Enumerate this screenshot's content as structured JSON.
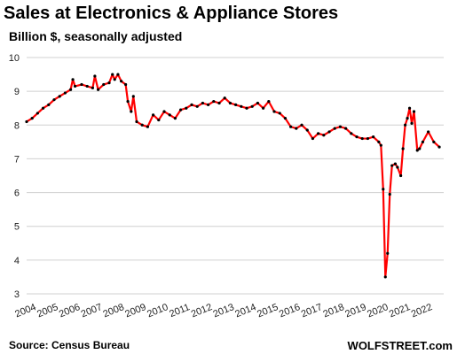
{
  "chart_data": {
    "type": "line",
    "title": "Sales at Electronics & Appliance Stores",
    "subtitle": "Billion $, seasonally adjusted",
    "xlabel": "",
    "ylabel": "",
    "ylim": [
      3,
      10
    ],
    "y_ticks": [
      "3",
      "4",
      "5",
      "6",
      "7",
      "8",
      "9",
      "10"
    ],
    "x_ticks": [
      "2004",
      "2005",
      "2006",
      "2007",
      "2008",
      "2009",
      "2010",
      "2011",
      "2012",
      "2013",
      "2014",
      "2015",
      "2016",
      "2017",
      "2018",
      "2019",
      "2020",
      "2021",
      "2022"
    ],
    "grid": "horizontal",
    "line_color": "#ff0000",
    "marker_color": "#000000",
    "series": [
      {
        "x": [
          2004.0,
          2004.25,
          2004.5,
          2004.75,
          2005.0,
          2005.25,
          2005.5,
          2005.75,
          2006.0,
          2006.1,
          2006.2,
          2006.5,
          2006.75,
          2007.0,
          2007.1,
          2007.25,
          2007.5,
          2007.75,
          2007.9,
          2008.0,
          2008.15,
          2008.3,
          2008.5,
          2008.6,
          2008.75,
          2008.85,
          2009.0,
          2009.25,
          2009.5,
          2009.75,
          2010.0,
          2010.25,
          2010.5,
          2010.75,
          2011.0,
          2011.25,
          2011.5,
          2011.75,
          2012.0,
          2012.25,
          2012.5,
          2012.75,
          2013.0,
          2013.25,
          2013.5,
          2013.75,
          2014.0,
          2014.25,
          2014.5,
          2014.75,
          2015.0,
          2015.25,
          2015.5,
          2015.75,
          2016.0,
          2016.25,
          2016.5,
          2016.75,
          2017.0,
          2017.25,
          2017.5,
          2017.75,
          2018.0,
          2018.25,
          2018.5,
          2018.75,
          2019.0,
          2019.25,
          2019.5,
          2019.75,
          2020.0,
          2020.1,
          2020.2,
          2020.3,
          2020.4,
          2020.5,
          2020.6,
          2020.75,
          2020.85,
          2021.0,
          2021.1,
          2021.2,
          2021.3,
          2021.4,
          2021.5,
          2021.6,
          2021.75,
          2021.85,
          2022.0,
          2022.25,
          2022.5,
          2022.75
        ],
        "y": [
          8.1,
          8.2,
          8.35,
          8.5,
          8.6,
          8.75,
          8.85,
          8.95,
          9.05,
          9.35,
          9.15,
          9.2,
          9.15,
          9.1,
          9.45,
          9.05,
          9.2,
          9.25,
          9.5,
          9.35,
          9.5,
          9.3,
          9.2,
          8.7,
          8.4,
          8.85,
          8.1,
          8.0,
          7.95,
          8.3,
          8.15,
          8.4,
          8.3,
          8.2,
          8.45,
          8.5,
          8.6,
          8.55,
          8.65,
          8.6,
          8.7,
          8.65,
          8.8,
          8.65,
          8.6,
          8.55,
          8.5,
          8.55,
          8.65,
          8.5,
          8.7,
          8.4,
          8.35,
          8.2,
          7.95,
          7.9,
          8.0,
          7.85,
          7.6,
          7.75,
          7.7,
          7.8,
          7.9,
          7.95,
          7.9,
          7.75,
          7.65,
          7.6,
          7.6,
          7.65,
          7.5,
          7.4,
          6.1,
          3.5,
          4.2,
          5.95,
          6.8,
          6.85,
          6.75,
          6.5,
          7.3,
          8.0,
          8.2,
          8.5,
          8.05,
          8.4,
          7.25,
          7.3,
          7.5,
          7.8,
          7.5,
          7.35
        ]
      }
    ]
  },
  "footer": {
    "source": "Source: Census Bureau",
    "brand": "WOLFSTREET.com"
  }
}
